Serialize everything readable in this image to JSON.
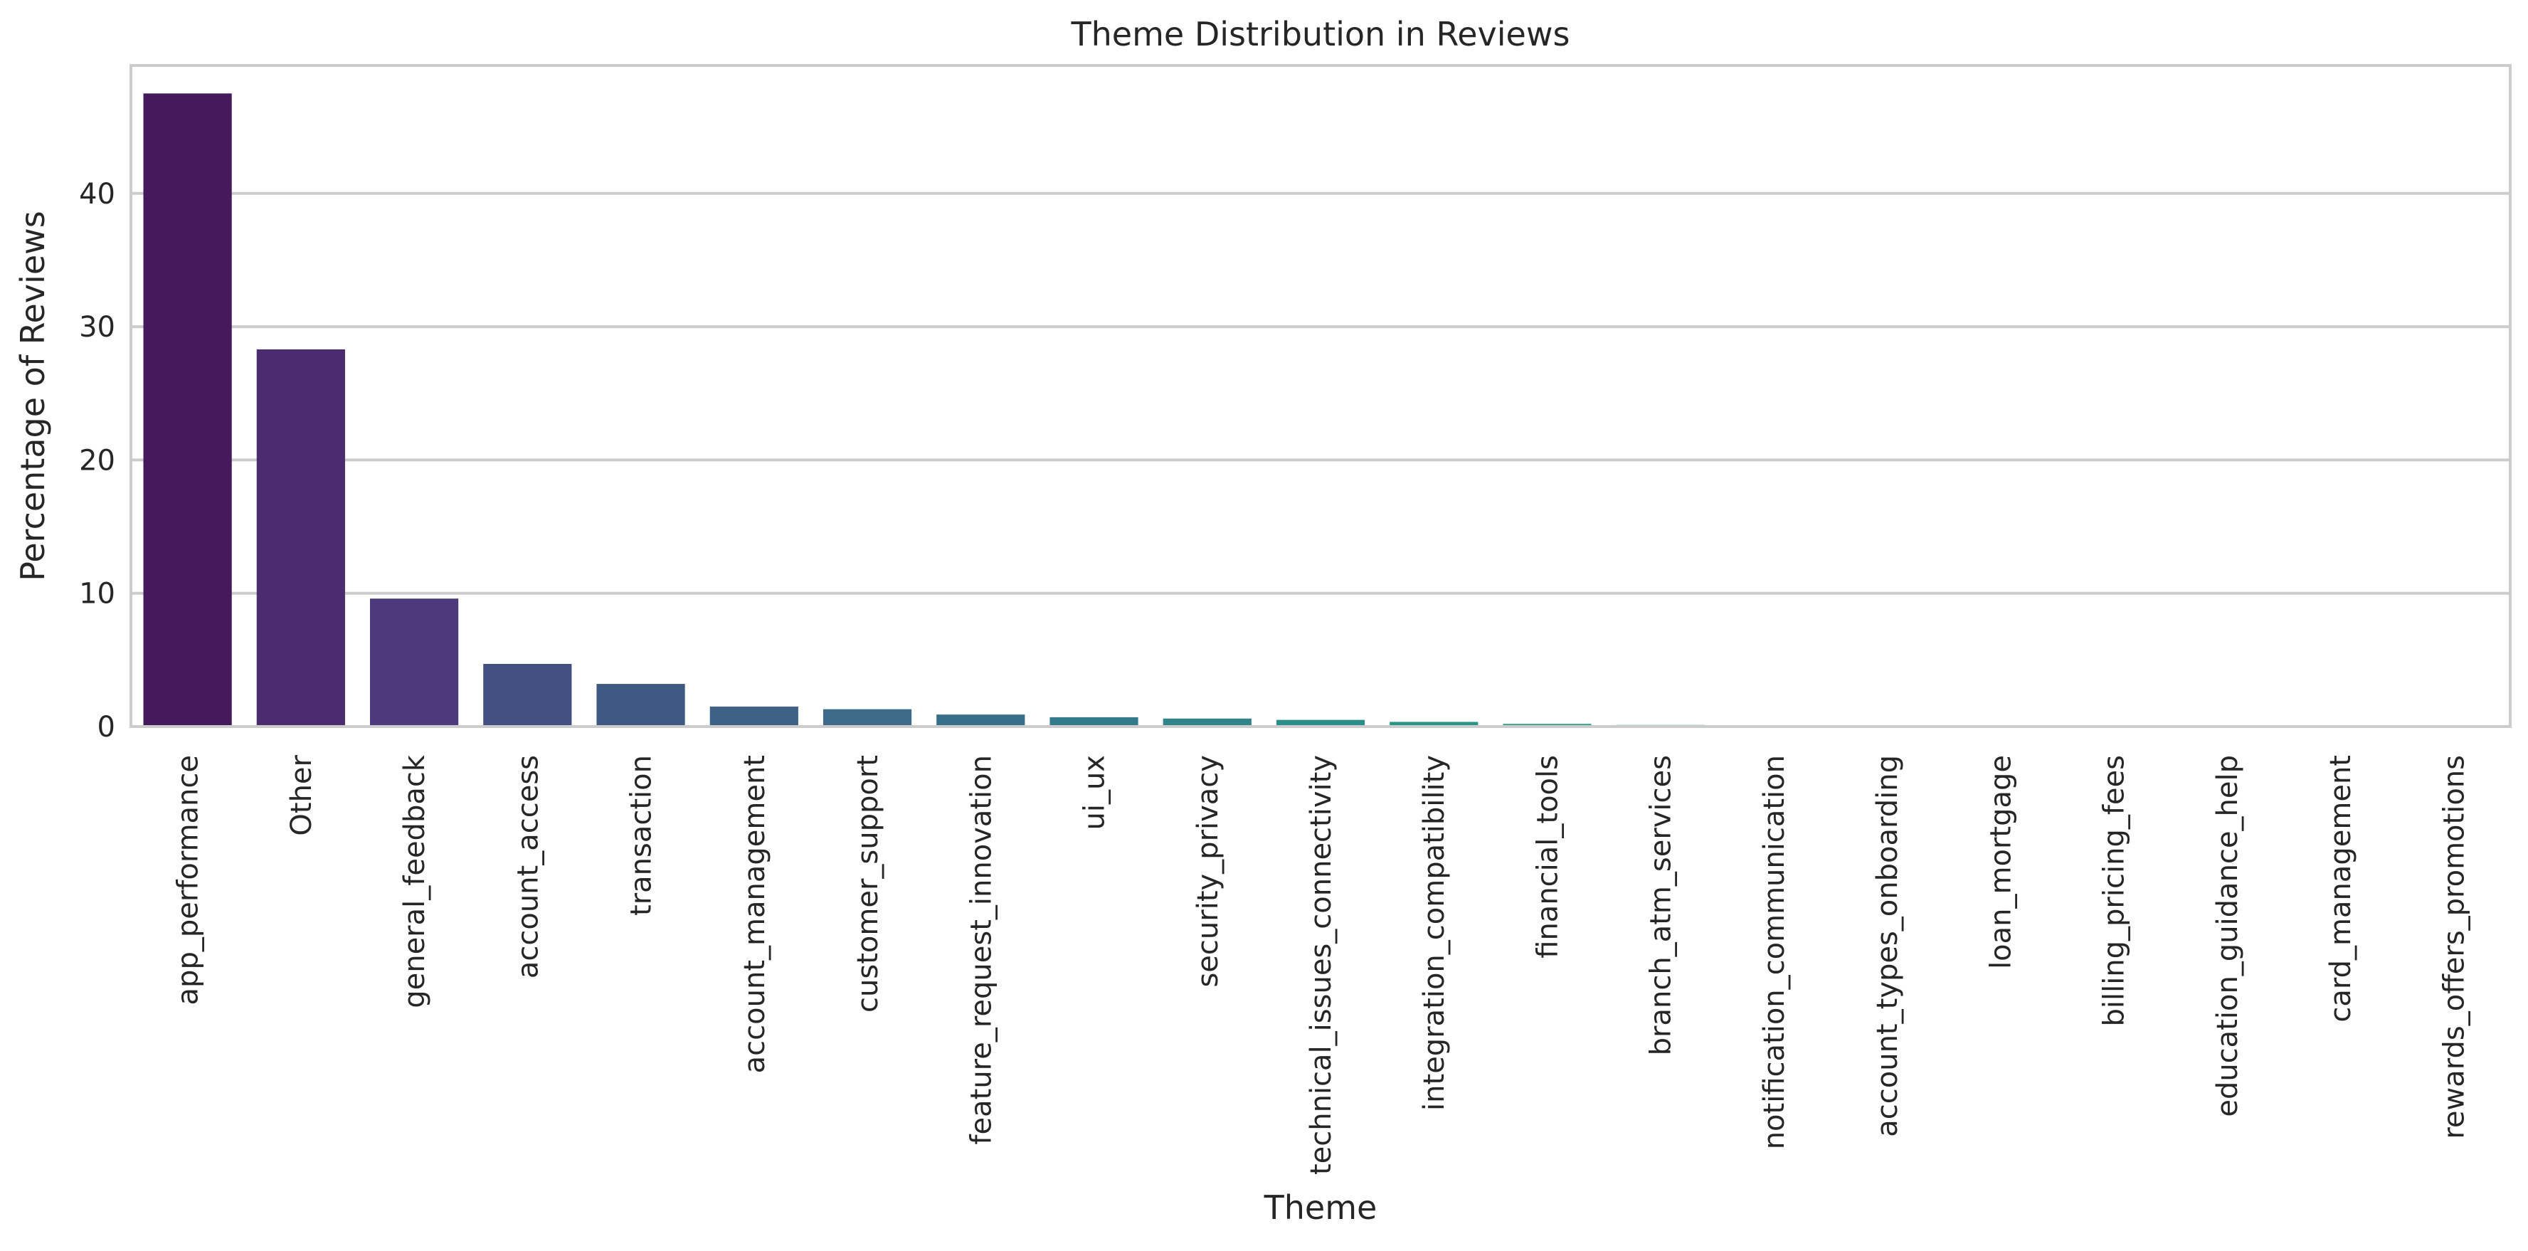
{
  "chart_data": {
    "type": "bar",
    "title": "Theme Distribution in Reviews",
    "xlabel": "Theme",
    "ylabel": "Percentage of Reviews",
    "categories": [
      "app_performance",
      "Other",
      "general_feedback",
      "account_access",
      "transaction",
      "account_management",
      "customer_support",
      "feature_request_innovation",
      "ui_ux",
      "security_privacy",
      "technical_issues_connectivity",
      "integration_compatibility",
      "financial_tools",
      "branch_atm_services",
      "notification_communication",
      "account_types_onboarding",
      "loan_mortgage",
      "billing_pricing_fees",
      "education_guidance_help",
      "card_management",
      "rewards_offers_promotions"
    ],
    "values": [
      47.5,
      28.3,
      9.6,
      4.7,
      3.2,
      1.5,
      1.3,
      0.9,
      0.7,
      0.6,
      0.5,
      0.35,
      0.2,
      0.12,
      0.1,
      0.08,
      0.06,
      0.05,
      0.04,
      0.03,
      0.02
    ],
    "colors": [
      "#441a5c",
      "#4b2c6e",
      "#4c3a7d",
      "#434e81",
      "#3f5a82",
      "#3e6186",
      "#3c6a88",
      "#376e89",
      "#337a8a",
      "#2f8389",
      "#2a8d88",
      "#279686",
      "#2ba185",
      "#35ab80",
      "#46b378",
      "#5abc6f",
      "#72c564",
      "#8bcd55",
      "#a6d448",
      "#c2dc3c",
      "#dde234"
    ],
    "ylim": [
      0,
      49.6
    ],
    "yticks": [
      0,
      10,
      20,
      30,
      40
    ],
    "grid": true,
    "grid_axis": "y",
    "legend": "none"
  }
}
